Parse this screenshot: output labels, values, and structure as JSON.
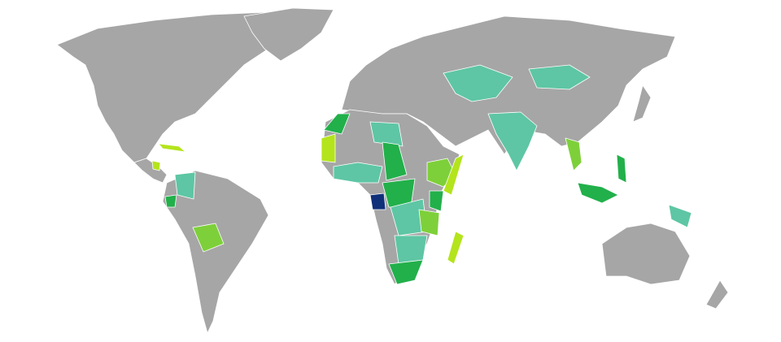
{
  "map": {
    "palette": {
      "base": "#a6a6a6",
      "teal": "#5ec6a4",
      "green": "#22b04b",
      "light_green": "#7ed03a",
      "yellow_green": "#b4e41c",
      "navy": "#10307a",
      "water": "#ffffff"
    }
  }
}
